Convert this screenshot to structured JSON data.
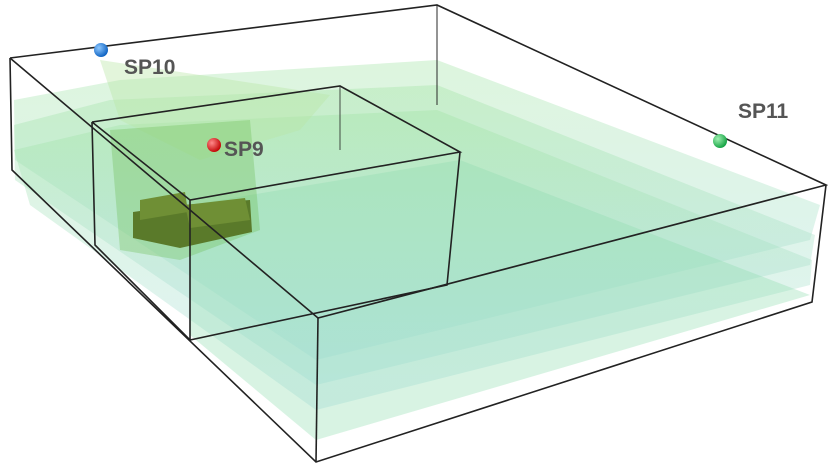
{
  "points": [
    {
      "label": "SP10"
    },
    {
      "label": "SP9"
    },
    {
      "label": "SP11"
    }
  ]
}
